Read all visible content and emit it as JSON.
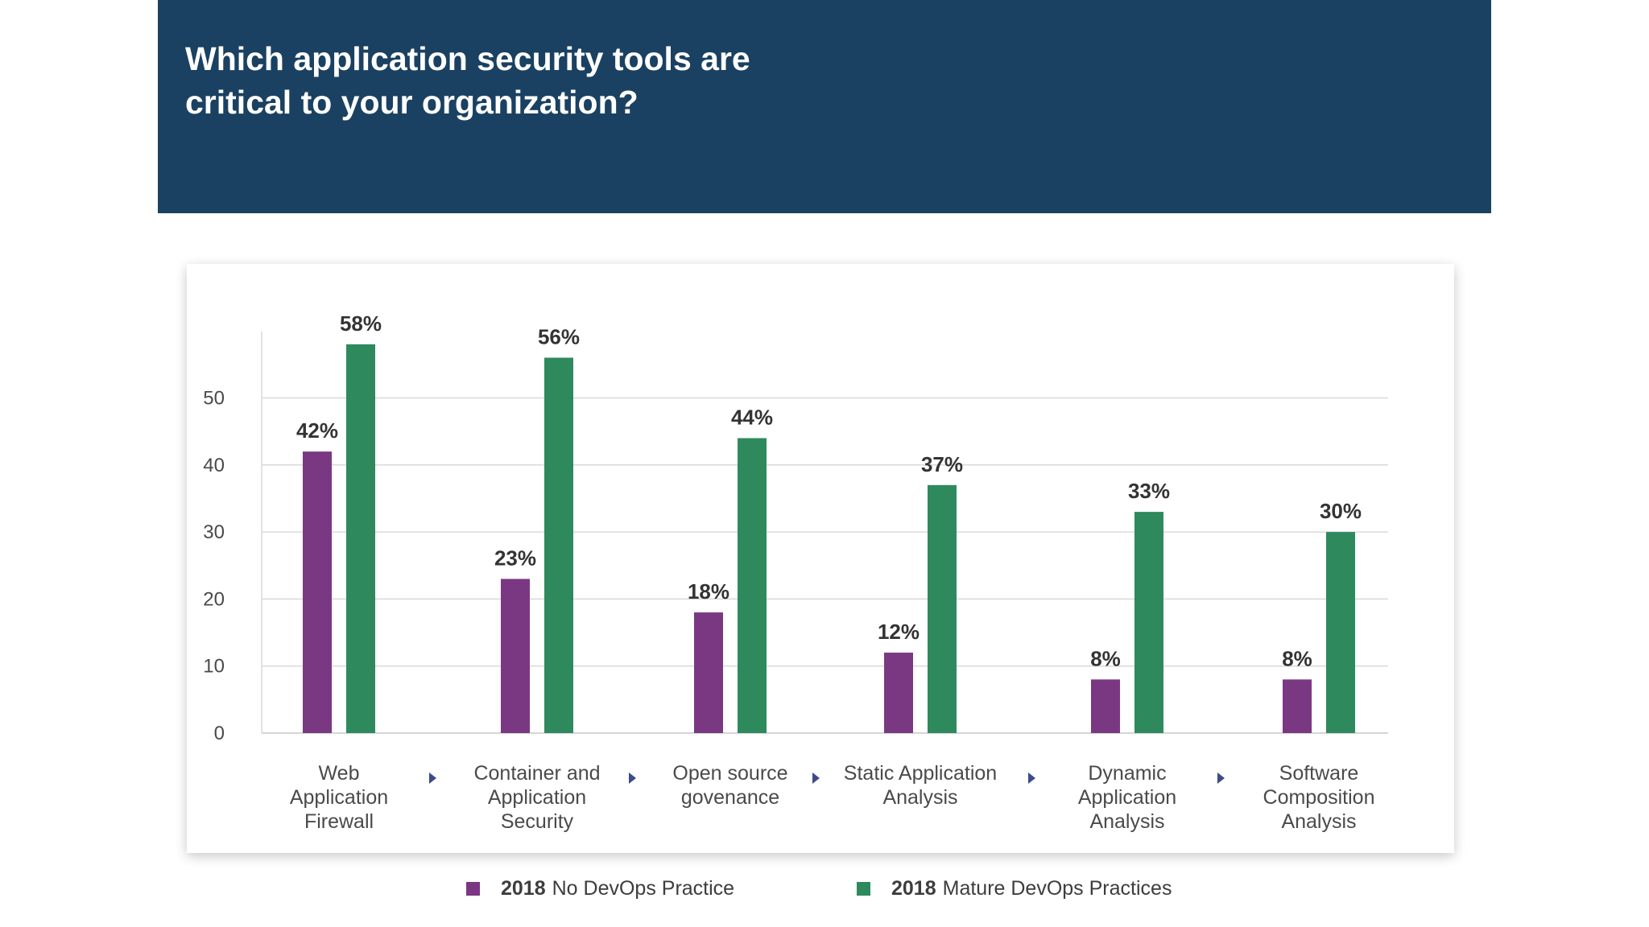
{
  "header": {
    "title_line1": "Which application security tools are",
    "title_line2": "critical to your organization?"
  },
  "colors": {
    "header_bg": "#1a4161",
    "series_no_devops": "#7a3883",
    "series_mature_devops": "#2e8a5d",
    "arrow": "#3c4b8c"
  },
  "chart_data": {
    "type": "bar",
    "title": "Which application security tools are critical to your organization?",
    "categories": [
      [
        "Web",
        "Application",
        "Firewall"
      ],
      [
        "Container and",
        "Application",
        "Security"
      ],
      [
        "Open source",
        "govenance"
      ],
      [
        "Static Application",
        "Analysis"
      ],
      [
        "Dynamic",
        "Application",
        "Analysis"
      ],
      [
        "Software",
        "Composition",
        "Analysis"
      ]
    ],
    "series": [
      {
        "name": "2018 No DevOps Practice",
        "values": [
          42,
          23,
          18,
          12,
          8,
          8
        ],
        "labels": [
          "42%",
          "23%",
          "18%",
          "12%",
          "8%",
          "8%"
        ]
      },
      {
        "name": "2018 Mature DevOps Practices",
        "values": [
          58,
          56,
          44,
          37,
          33,
          30
        ],
        "labels": [
          "58%",
          "56%",
          "44%",
          "37%",
          "33%",
          "30%"
        ]
      }
    ],
    "y_ticks": [
      0,
      10,
      20,
      30,
      40,
      50
    ],
    "ylim": [
      0,
      60
    ],
    "grid": true,
    "legend_position": "bottom",
    "category_separator_icon": "triangle-right-icon"
  },
  "legend": {
    "items": [
      {
        "year": "2018",
        "text": "No DevOps Practice",
        "color": "#7a3883"
      },
      {
        "year": "2018",
        "text": "Mature DevOps Practices",
        "color": "#2e8a5d"
      }
    ]
  }
}
